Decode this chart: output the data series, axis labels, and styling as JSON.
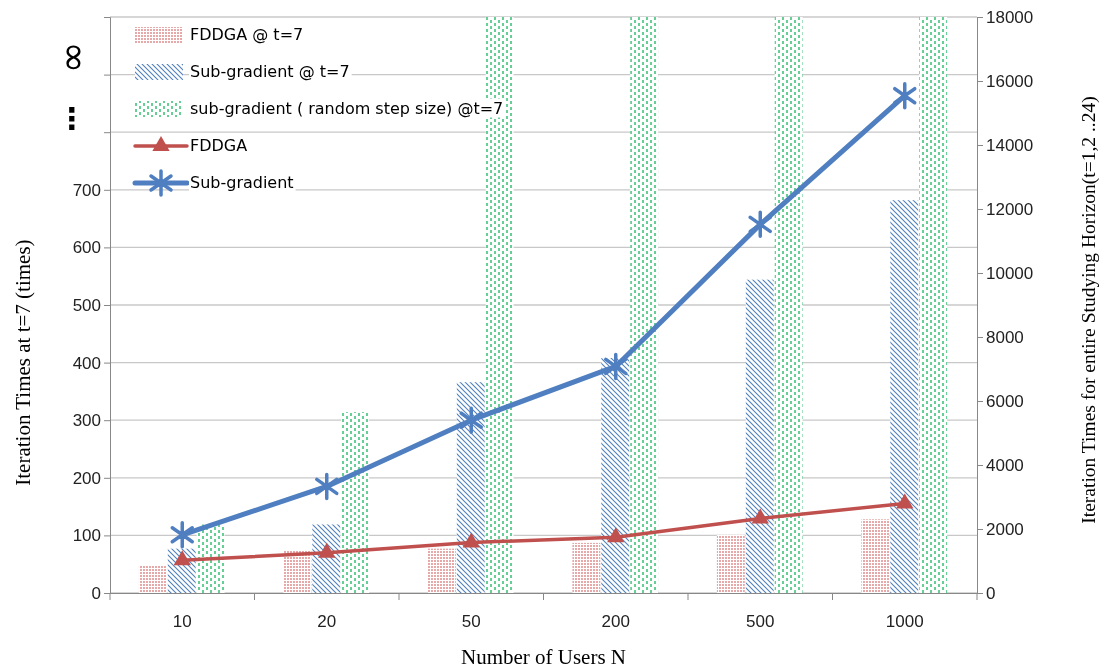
{
  "chart_data": {
    "type": "bar",
    "xlabel": "Number of Users N",
    "ylabel": "Iteration Times at t=7 (times)",
    "y2label": "Iteration  Times  for  entire  Studying  Horizon(t=1,2  ..24)",
    "categories": [
      "10",
      "20",
      "50",
      "200",
      "500",
      "1000"
    ],
    "series": [
      {
        "name": "FDDGA @ t=7",
        "color": "#e6a8a8",
        "values": [
          47,
          74,
          77,
          87,
          101,
          128
        ]
      },
      {
        "name": "Sub-gradient @ t=7",
        "color": "#4f81bd",
        "values": [
          77,
          119,
          366,
          408,
          544,
          682
        ]
      },
      {
        "name": "sub-gradient ( random step size) @t=7",
        "color": "#00b050",
        "values": [
          119,
          314,
          1000,
          1000,
          1000,
          1000
        ]
      },
      {
        "name": "FDDGA",
        "type": "line",
        "axis": "y2",
        "color": "#c0504d",
        "marker": "triangle",
        "values": [
          1020,
          1260,
          1580,
          1740,
          2330,
          2800
        ]
      },
      {
        "name": "Sub-gradient",
        "type": "line",
        "axis": "y2",
        "color": "#4f7fc0",
        "marker": "cross",
        "values": [
          1820,
          3330,
          5400,
          7080,
          11520,
          15540
        ]
      }
    ],
    "ylim": [
      0,
      1000
    ],
    "yticks": [
      0,
      100,
      200,
      300,
      400,
      500,
      600,
      700,
      {
        "value": 800,
        "label": null
      },
      {
        "value": 900,
        "label": null
      },
      {
        "value": 1000,
        "label": null
      }
    ],
    "y2lim": [
      0,
      18000
    ],
    "y2ticks": [
      0,
      2000,
      4000,
      6000,
      8000,
      10000,
      12000,
      14000,
      16000,
      18000
    ],
    "annotations": [
      "⋮",
      "∞"
    ],
    "grid": "y",
    "legend": "top left"
  }
}
